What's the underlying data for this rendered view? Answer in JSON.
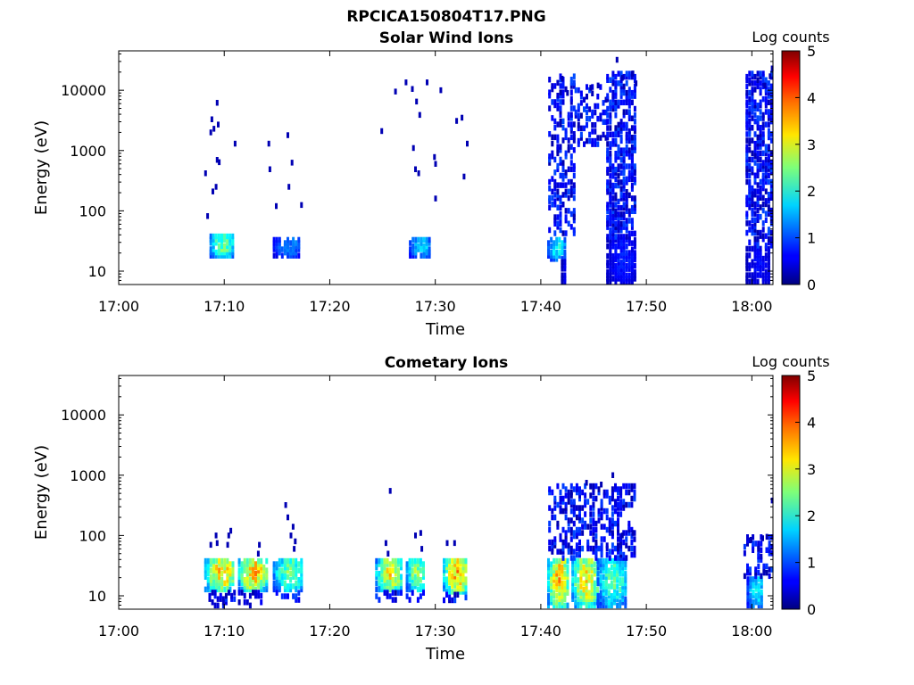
{
  "figure": {
    "title": "RPCICA150804T17.PNG"
  },
  "chart_data": [
    {
      "type": "heatmap",
      "title": "Solar Wind Ions",
      "xlabel": "Time",
      "ylabel": "Energy (eV)",
      "x_unit": "minutes after 17:00",
      "xlim": [
        0,
        62
      ],
      "ylim": [
        6,
        45000
      ],
      "y_scale": "log",
      "x_ticks": [
        "17:00",
        "17:10",
        "17:20",
        "17:30",
        "17:40",
        "17:50",
        "18:00"
      ],
      "y_ticks": [
        "10",
        "100",
        "1000",
        "10000"
      ],
      "colorbar": {
        "label": "Log counts",
        "range": [
          0,
          5
        ],
        "ticks": [
          "0",
          "1",
          "2",
          "3",
          "4",
          "5"
        ],
        "colormap": "jet"
      },
      "grid": false,
      "blocks": [
        {
          "t0": 8.6,
          "t1": 10.8,
          "e_lo": 17,
          "e_hi": 40,
          "peak": 2.6
        },
        {
          "t0": 14.6,
          "t1": 17.1,
          "e_lo": 17,
          "e_hi": 35,
          "peak": 1.4
        },
        {
          "t0": 27.5,
          "t1": 29.5,
          "e_lo": 17,
          "e_hi": 35,
          "peak": 1.8
        },
        {
          "t0": 40.6,
          "t1": 42.2,
          "e_lo": 15,
          "e_hi": 35,
          "peak": 2.0
        },
        {
          "t0": 41.9,
          "t1": 42.4,
          "e_lo": 5.5,
          "e_hi": 15,
          "peak": 0.6
        },
        {
          "t0": 46.2,
          "t1": 48.9,
          "e_lo": 5.5,
          "e_hi": 35,
          "peak": 0.8
        },
        {
          "t0": 59.4,
          "t1": 61.6,
          "e_lo": 5.5,
          "e_hi": 25,
          "peak": 0.7
        }
      ],
      "sparse": [
        {
          "t0": 40.7,
          "t1": 43.2,
          "e_lo": 40,
          "e_hi": 18000,
          "density": 0.35
        },
        {
          "t0": 43.2,
          "t1": 46.2,
          "e_lo": 1200,
          "e_hi": 12000,
          "density": 0.3
        },
        {
          "t0": 46.2,
          "t1": 49.0,
          "e_lo": 35,
          "e_hi": 20000,
          "density": 0.6
        },
        {
          "t0": 59.4,
          "t1": 62.0,
          "e_lo": 25,
          "e_hi": 20000,
          "density": 0.55
        }
      ],
      "points": [
        [
          8.1,
          420
        ],
        [
          8.3,
          82
        ],
        [
          8.6,
          2000
        ],
        [
          8.7,
          3300
        ],
        [
          8.9,
          2300
        ],
        [
          8.8,
          210
        ],
        [
          9.1,
          250
        ],
        [
          9.2,
          6200
        ],
        [
          9.3,
          2700
        ],
        [
          9.2,
          700
        ],
        [
          9.4,
          640
        ],
        [
          10.9,
          1300
        ],
        [
          14.1,
          1300
        ],
        [
          14.2,
          490
        ],
        [
          14.8,
          120
        ],
        [
          15.9,
          1800
        ],
        [
          16.0,
          250
        ],
        [
          16.3,
          630
        ],
        [
          17.2,
          125
        ],
        [
          24.8,
          2100
        ],
        [
          26.1,
          9500
        ],
        [
          27.1,
          13500
        ],
        [
          27.7,
          10500
        ],
        [
          28.1,
          6500
        ],
        [
          28.4,
          3900
        ],
        [
          27.8,
          1100
        ],
        [
          28.0,
          490
        ],
        [
          28.3,
          420
        ],
        [
          29.1,
          13500
        ],
        [
          29.8,
          780
        ],
        [
          29.9,
          600
        ],
        [
          29.9,
          160
        ],
        [
          30.4,
          10000
        ],
        [
          31.9,
          3100
        ],
        [
          32.4,
          3500
        ],
        [
          32.6,
          370
        ],
        [
          32.9,
          1300
        ],
        [
          41.9,
          15500
        ],
        [
          42.4,
          9000
        ],
        [
          44.6,
          11000
        ],
        [
          45.3,
          12000
        ],
        [
          47.1,
          32000
        ],
        [
          47.6,
          16000
        ],
        [
          48.6,
          19000
        ],
        [
          48.9,
          13000
        ],
        [
          61.1,
          12000
        ],
        [
          61.6,
          17000
        ],
        [
          61.8,
          23000
        ]
      ]
    },
    {
      "type": "heatmap",
      "title": "Cometary Ions",
      "xlabel": "Time",
      "ylabel": "Energy (eV)",
      "x_unit": "minutes after 17:00",
      "xlim": [
        0,
        62
      ],
      "ylim": [
        6,
        45000
      ],
      "y_scale": "log",
      "x_ticks": [
        "17:00",
        "17:10",
        "17:20",
        "17:30",
        "17:40",
        "17:50",
        "18:00"
      ],
      "y_ticks": [
        "10",
        "100",
        "1000",
        "10000"
      ],
      "colorbar": {
        "label": "Log counts",
        "range": [
          0,
          5
        ],
        "ticks": [
          "0",
          "1",
          "2",
          "3",
          "4",
          "5"
        ],
        "colormap": "jet"
      },
      "grid": false,
      "blocks": [
        {
          "t0": 8.1,
          "t1": 10.9,
          "e_lo": 12,
          "e_hi": 40,
          "peak": 3.5
        },
        {
          "t0": 11.3,
          "t1": 13.9,
          "e_lo": 12,
          "e_hi": 40,
          "peak": 3.6
        },
        {
          "t0": 14.6,
          "t1": 17.4,
          "e_lo": 12,
          "e_hi": 40,
          "peak": 2.6
        },
        {
          "t0": 24.3,
          "t1": 26.7,
          "e_lo": 12,
          "e_hi": 40,
          "peak": 3.3
        },
        {
          "t0": 27.2,
          "t1": 29.0,
          "e_lo": 12,
          "e_hi": 40,
          "peak": 2.8
        },
        {
          "t0": 30.7,
          "t1": 33.0,
          "e_lo": 11,
          "e_hi": 40,
          "peak": 3.7
        },
        {
          "t0": 40.6,
          "t1": 42.5,
          "e_lo": 6.5,
          "e_hi": 40,
          "peak": 3.6
        },
        {
          "t0": 42.9,
          "t1": 45.3,
          "e_lo": 6.5,
          "e_hi": 40,
          "peak": 3.4
        },
        {
          "t0": 45.3,
          "t1": 48.0,
          "e_lo": 6.5,
          "e_hi": 40,
          "peak": 2.4
        },
        {
          "t0": 59.5,
          "t1": 61.0,
          "e_lo": 6.5,
          "e_hi": 20,
          "peak": 2.0
        }
      ],
      "sparse": [
        {
          "t0": 40.7,
          "t1": 49.0,
          "e_lo": 40,
          "e_hi": 700,
          "density": 0.35
        },
        {
          "t0": 8.5,
          "t1": 10.9,
          "e_lo": 6.5,
          "e_hi": 12,
          "density": 0.4
        },
        {
          "t0": 11.3,
          "t1": 13.9,
          "e_lo": 6.5,
          "e_hi": 12,
          "density": 0.3
        },
        {
          "t0": 14.6,
          "t1": 17.0,
          "e_lo": 8,
          "e_hi": 12,
          "density": 0.3
        },
        {
          "t0": 24.3,
          "t1": 26.7,
          "e_lo": 8,
          "e_hi": 12,
          "density": 0.3
        },
        {
          "t0": 27.2,
          "t1": 29.0,
          "e_lo": 8,
          "e_hi": 12,
          "density": 0.3
        },
        {
          "t0": 30.7,
          "t1": 33.0,
          "e_lo": 8,
          "e_hi": 11,
          "density": 0.4
        },
        {
          "t0": 59.2,
          "t1": 62.0,
          "e_lo": 20,
          "e_hi": 100,
          "density": 0.3
        }
      ],
      "points": [
        [
          8.6,
          70
        ],
        [
          9.1,
          100
        ],
        [
          9.2,
          75
        ],
        [
          10.3,
          100
        ],
        [
          10.5,
          120
        ],
        [
          10.2,
          70
        ],
        [
          13.2,
          70
        ],
        [
          13.1,
          50
        ],
        [
          15.7,
          320
        ],
        [
          15.9,
          200
        ],
        [
          16.2,
          100
        ],
        [
          16.4,
          140
        ],
        [
          16.5,
          60
        ],
        [
          16.6,
          80
        ],
        [
          25.6,
          550
        ],
        [
          25.2,
          75
        ],
        [
          25.4,
          50
        ],
        [
          28.0,
          100
        ],
        [
          28.5,
          110
        ],
        [
          28.6,
          60
        ],
        [
          31.0,
          75
        ],
        [
          31.7,
          75
        ],
        [
          44.2,
          750
        ],
        [
          44.6,
          650
        ],
        [
          45.6,
          700
        ],
        [
          46.7,
          1000
        ],
        [
          47.6,
          100
        ],
        [
          48.6,
          110
        ],
        [
          59.8,
          85
        ],
        [
          60.9,
          90
        ],
        [
          61.3,
          95
        ],
        [
          61.8,
          380
        ],
        [
          60.5,
          60
        ]
      ]
    }
  ]
}
